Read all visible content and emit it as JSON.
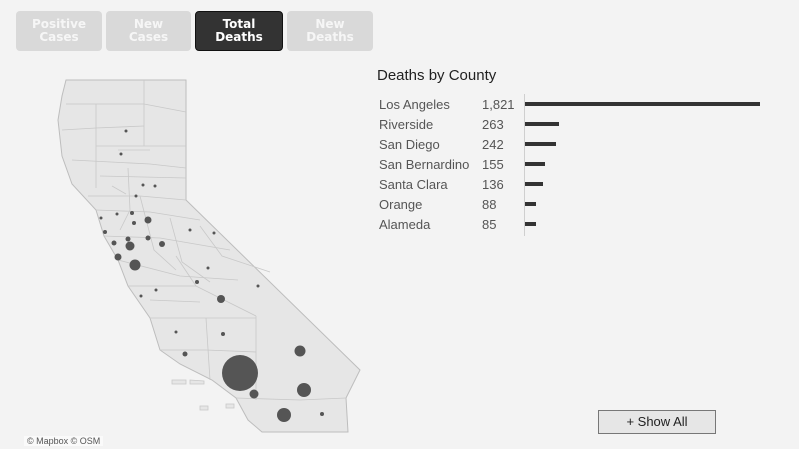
{
  "tabs": [
    {
      "label": "Positive\nCases",
      "active": false
    },
    {
      "label": "New\nCases",
      "active": false
    },
    {
      "label": "Total\nDeaths",
      "active": true
    },
    {
      "label": "New\nDeaths",
      "active": false
    }
  ],
  "map": {
    "attribution": "© Mapbox © OSM"
  },
  "chart": {
    "title": "Deaths by County",
    "rows": [
      {
        "county": "Los Angeles",
        "value_label": "1,821",
        "value": 1821
      },
      {
        "county": "Riverside",
        "value_label": "263",
        "value": 263
      },
      {
        "county": "San Diego",
        "value_label": "242",
        "value": 242
      },
      {
        "county": "San Bernardino",
        "value_label": "155",
        "value": 155
      },
      {
        "county": "Santa Clara",
        "value_label": "136",
        "value": 136
      },
      {
        "county": "Orange",
        "value_label": "88",
        "value": 88
      },
      {
        "county": "Alameda",
        "value_label": "85",
        "value": 85
      }
    ]
  },
  "chart_data": {
    "type": "bar",
    "title": "Deaths by County",
    "categories": [
      "Los Angeles",
      "Riverside",
      "San Diego",
      "San Bernardino",
      "Santa Clara",
      "Orange",
      "Alameda"
    ],
    "values": [
      1821,
      263,
      242,
      155,
      136,
      88,
      85
    ]
  },
  "show_all_label": "+ Show All",
  "colors": {
    "tab_active_bg": "#333333",
    "tab_inactive_bg": "#d9d9d9",
    "bar": "#333333",
    "bubble": "#555555",
    "land": "#e6e6e6"
  }
}
